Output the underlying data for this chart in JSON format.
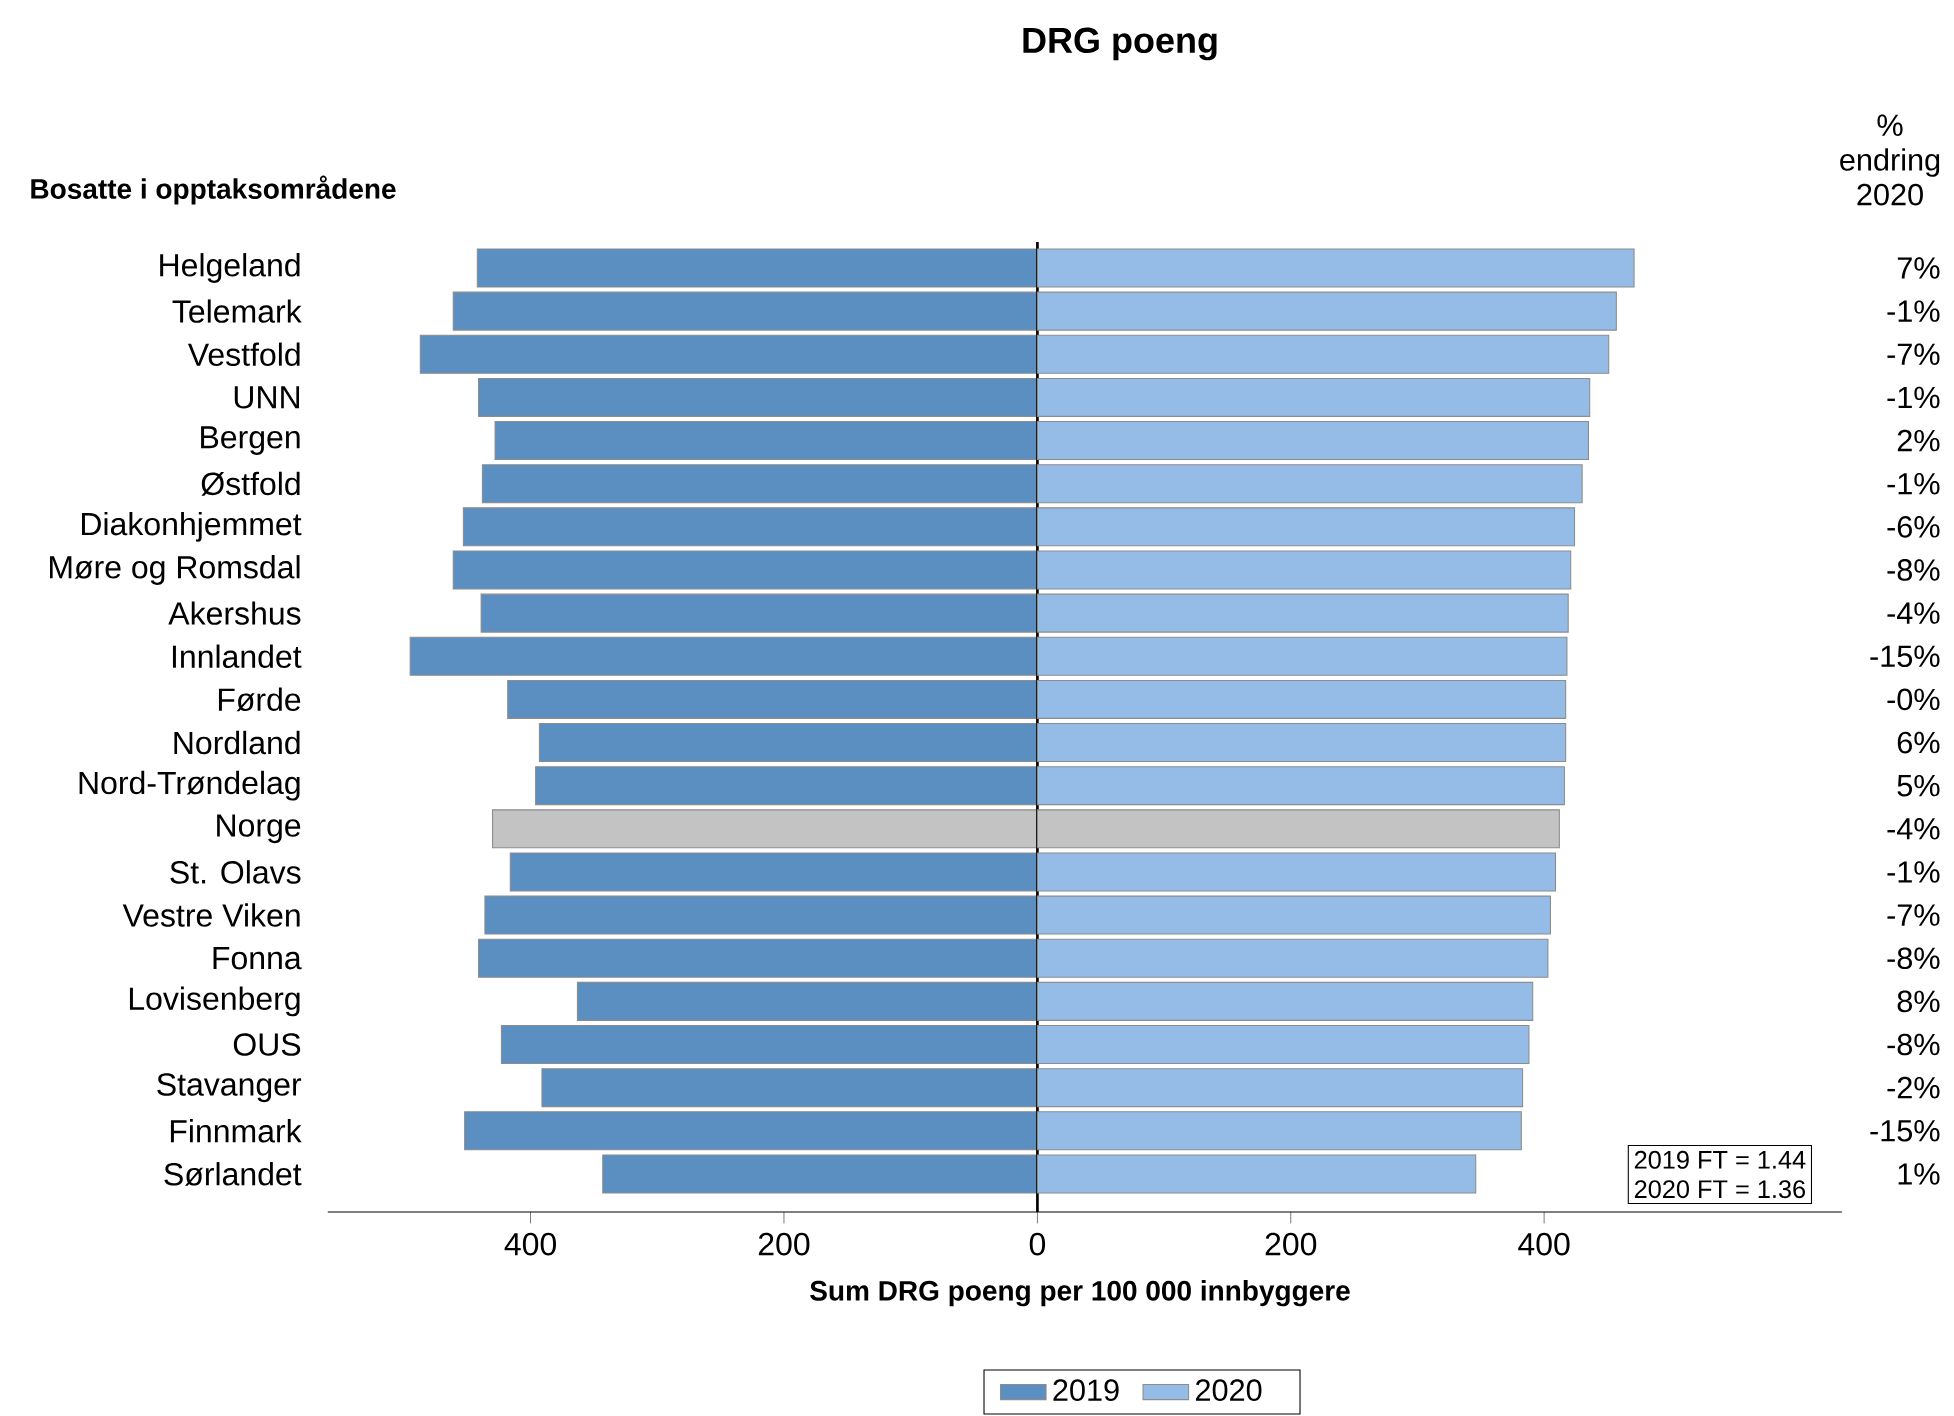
{
  "chart_data": [
    {
      "type": "bar",
      "orientation": "horizontal",
      "categories": [
        "Helgeland",
        "Telemark",
        "Vestfold",
        "UNN",
        "Bergen",
        "Østfold",
        "Diakonhjemmet",
        "Møre og Romsdal",
        "Akershus",
        "Innlandet",
        "Førde",
        "Nordland",
        "Nord-Trøndelag",
        "Norge",
        "St. Olavs",
        "Vestre Viken",
        "Fonna",
        "Lovisenberg",
        "OUS",
        "Stavanger",
        "Finnmark",
        "Sørlandet"
      ],
      "series": [
        {
          "name": "2019",
          "color": "#5b8ec1",
          "colors": [
            "#5b8ec1",
            "#5b8ec1",
            "#5b8ec1",
            "#5b8ec1",
            "#5b8ec1",
            "#5b8ec1",
            "#5b8ec1",
            "#5b8ec1",
            "#5b8ec1",
            "#5b8ec1",
            "#5b8ec1",
            "#5b8ec1",
            "#5b8ec1",
            "#c3c3c3",
            "#5b8ec1",
            "#5b8ec1",
            "#5b8ec1",
            "#5b8ec1",
            "#5b8ec1",
            "#5b8ec1",
            "#5b8ec1",
            "#5b8ec1"
          ],
          "values": [
            442,
            461,
            487,
            441,
            428,
            438,
            453,
            461,
            439,
            495,
            418,
            393,
            396,
            430,
            416,
            436,
            441,
            363,
            423,
            391,
            452,
            343
          ]
        }
      ],
      "xlim": [
        560,
        0
      ],
      "xticks": [
        400,
        200
      ],
      "legend": "bottom",
      "annotations": [
        "Bosatte i opptaksområdene"
      ]
    },
    {
      "type": "bar",
      "orientation": "horizontal",
      "title": "DRG poeng",
      "xlabel": "Sum DRG poeng per 100 000 innbyggere",
      "tick_labels": "x",
      "categories": [
        null,
        null,
        null,
        null,
        null,
        null,
        null,
        null,
        null,
        null,
        null,
        null,
        null,
        null,
        null,
        null,
        null,
        null,
        null,
        null,
        null,
        null
      ],
      "series": [
        {
          "name": "2020",
          "color": "#94bce6",
          "colors": [
            "#94bce6",
            "#94bce6",
            "#94bce6",
            "#94bce6",
            "#94bce6",
            "#94bce6",
            "#94bce6",
            "#94bce6",
            "#94bce6",
            "#94bce6",
            "#94bce6",
            "#94bce6",
            "#94bce6",
            "#c3c3c3",
            "#94bce6",
            "#94bce6",
            "#94bce6",
            "#94bce6",
            "#94bce6",
            "#94bce6",
            "#94bce6",
            "#94bce6"
          ],
          "values": [
            471,
            457,
            451,
            436,
            435,
            430,
            424,
            421,
            419,
            418,
            417,
            417,
            416,
            412,
            409,
            405,
            403,
            391,
            388,
            383,
            382,
            346
          ]
        }
      ],
      "xlim": [
        0,
        635
      ],
      "xticks": [
        0,
        200,
        400
      ],
      "legend": "bottom",
      "annotations": [
        "% endring 2020",
        "7%",
        "-1%",
        "-7%",
        "-1%",
        "2%",
        "-1%",
        "-6%",
        "-8%",
        "-4%",
        "-15%",
        "-0%",
        "6%",
        "5%",
        "-4%",
        "-1%",
        "-7%",
        "-8%",
        "8%",
        "-8%",
        "-2%",
        "-15%",
        "1%",
        "2019 FT = 1.44",
        "2020 FT = 1.36"
      ]
    }
  ]
}
